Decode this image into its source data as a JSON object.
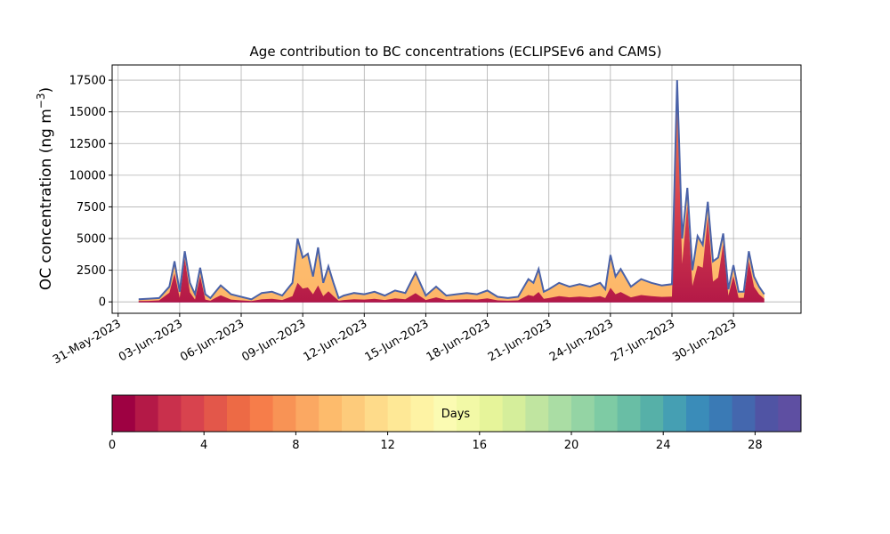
{
  "chart_data": {
    "type": "area",
    "title": "Age contribution to BC concentrations (ECLIPSEv6 and CAMS)",
    "ylabel": "OC concentration (ng m",
    "ylabel_sup": "−3",
    "ylabel_close": ")",
    "xlabel": "",
    "xlim": [
      "2023-05-30T17:00",
      "2023-07-03T07:00"
    ],
    "ylim": [
      -900,
      18700
    ],
    "grid": true,
    "x_tick_labels": [
      "31-May-2023",
      "03-Jun-2023",
      "06-Jun-2023",
      "09-Jun-2023",
      "12-Jun-2023",
      "15-Jun-2023",
      "18-Jun-2023",
      "21-Jun-2023",
      "24-Jun-2023",
      "27-Jun-2023",
      "30-Jun-2023"
    ],
    "x_ticks": [
      "2023-05-31",
      "2023-06-03",
      "2023-06-06",
      "2023-06-09",
      "2023-06-12",
      "2023-06-15",
      "2023-06-18",
      "2023-06-21",
      "2023-06-24",
      "2023-06-27",
      "2023-06-30"
    ],
    "y_ticks": [
      0,
      2500,
      5000,
      7500,
      10000,
      12500,
      15000,
      17500
    ],
    "y_tick_labels": [
      "0",
      "2500",
      "5000",
      "7500",
      "10000",
      "12500",
      "15000",
      "17500"
    ],
    "colorbar": {
      "label": "Days",
      "range": [
        0,
        30
      ],
      "tick_values": [
        0,
        4,
        8,
        12,
        16,
        20,
        24,
        28
      ],
      "tick_labels": [
        "0",
        "4",
        "8",
        "12",
        "16",
        "20",
        "24",
        "28"
      ],
      "colormap": "Spectral",
      "colors": [
        "#9e0142",
        "#b41947",
        "#c9304c",
        "#d8434e",
        "#e3574a",
        "#ed6a45",
        "#f67d4a",
        "#f89355",
        "#fba862",
        "#fdbb6c",
        "#fdcb7b",
        "#fedb8a",
        "#fee896",
        "#fef3a4",
        "#fbfbb2",
        "#f2f9a6",
        "#e6f49a",
        "#d5ee9b",
        "#c0e5a0",
        "#aadda4",
        "#94d4a4",
        "#7ecba4",
        "#69bea5",
        "#56b0a8",
        "#459fb3",
        "#3a8cb9",
        "#3a7ab5",
        "#4467ae",
        "#5054a4",
        "#5e4fa2"
      ]
    },
    "line_color": "#4a62a8",
    "x": [
      "2023-06-01T00:00",
      "2023-06-01T12:00",
      "2023-06-02T00:00",
      "2023-06-02T12:00",
      "2023-06-02T18:00",
      "2023-06-03T00:00",
      "2023-06-03T06:00",
      "2023-06-03T12:00",
      "2023-06-03T18:00",
      "2023-06-04T00:00",
      "2023-06-04T06:00",
      "2023-06-04T12:00",
      "2023-06-04T18:00",
      "2023-06-05T00:00",
      "2023-06-05T12:00",
      "2023-06-06T00:00",
      "2023-06-06T12:00",
      "2023-06-07T00:00",
      "2023-06-07T12:00",
      "2023-06-08T00:00",
      "2023-06-08T12:00",
      "2023-06-08T18:00",
      "2023-06-09T00:00",
      "2023-06-09T06:00",
      "2023-06-09T12:00",
      "2023-06-09T18:00",
      "2023-06-10T00:00",
      "2023-06-10T06:00",
      "2023-06-10T12:00",
      "2023-06-10T18:00",
      "2023-06-11T00:00",
      "2023-06-11T12:00",
      "2023-06-12T00:00",
      "2023-06-12T12:00",
      "2023-06-13T00:00",
      "2023-06-13T12:00",
      "2023-06-14T00:00",
      "2023-06-14T12:00",
      "2023-06-15T00:00",
      "2023-06-15T12:00",
      "2023-06-16T00:00",
      "2023-06-16T12:00",
      "2023-06-17T00:00",
      "2023-06-17T12:00",
      "2023-06-18T00:00",
      "2023-06-18T12:00",
      "2023-06-19T00:00",
      "2023-06-19T12:00",
      "2023-06-20T00:00",
      "2023-06-20T06:00",
      "2023-06-20T12:00",
      "2023-06-20T18:00",
      "2023-06-21T00:00",
      "2023-06-21T12:00",
      "2023-06-22T00:00",
      "2023-06-22T12:00",
      "2023-06-23T00:00",
      "2023-06-23T12:00",
      "2023-06-23T18:00",
      "2023-06-24T00:00",
      "2023-06-24T06:00",
      "2023-06-24T12:00",
      "2023-06-25T00:00",
      "2023-06-25T12:00",
      "2023-06-26T00:00",
      "2023-06-26T12:00",
      "2023-06-27T00:00",
      "2023-06-27T06:00",
      "2023-06-27T12:00",
      "2023-06-27T18:00",
      "2023-06-28T00:00",
      "2023-06-28T06:00",
      "2023-06-28T12:00",
      "2023-06-28T18:00",
      "2023-06-29T00:00",
      "2023-06-29T06:00",
      "2023-06-29T12:00",
      "2023-06-29T18:00",
      "2023-06-30T00:00",
      "2023-06-30T06:00",
      "2023-06-30T12:00",
      "2023-06-30T18:00",
      "2023-07-01T00:00",
      "2023-07-01T06:00",
      "2023-07-01T12:00"
    ],
    "total": [
      200,
      250,
      300,
      1200,
      3200,
      800,
      4000,
      1500,
      600,
      2700,
      600,
      300,
      800,
      1300,
      600,
      400,
      200,
      700,
      800,
      500,
      1500,
      5000,
      3500,
      3800,
      2000,
      4300,
      1500,
      2800,
      1500,
      300,
      500,
      700,
      600,
      800,
      500,
      900,
      700,
      2300,
      500,
      1200,
      500,
      600,
      700,
      600,
      900,
      400,
      300,
      400,
      1800,
      1500,
      2600,
      800,
      1000,
      1500,
      1200,
      1400,
      1200,
      1500,
      1000,
      3700,
      2000,
      2600,
      1200,
      1800,
      1500,
      1300,
      1400,
      17500,
      5000,
      9000,
      2500,
      5200,
      4500,
      7900,
      3200,
      3500,
      5400,
      1000,
      2900,
      800,
      800,
      4000,
      2000,
      1200,
      600
    ],
    "young_fraction": [
      0.3,
      0.3,
      0.4,
      0.6,
      0.7,
      0.4,
      0.85,
      0.5,
      0.3,
      0.75,
      0.3,
      0.3,
      0.4,
      0.4,
      0.3,
      0.3,
      0.3,
      0.3,
      0.3,
      0.3,
      0.3,
      0.3,
      0.3,
      0.3,
      0.3,
      0.3,
      0.3,
      0.3,
      0.3,
      0.3,
      0.3,
      0.3,
      0.3,
      0.3,
      0.3,
      0.3,
      0.3,
      0.3,
      0.3,
      0.3,
      0.3,
      0.3,
      0.3,
      0.3,
      0.3,
      0.3,
      0.3,
      0.3,
      0.3,
      0.3,
      0.3,
      0.3,
      0.3,
      0.3,
      0.3,
      0.3,
      0.3,
      0.3,
      0.3,
      0.3,
      0.3,
      0.3,
      0.3,
      0.3,
      0.3,
      0.3,
      0.3,
      0.9,
      0.6,
      0.85,
      0.5,
      0.55,
      0.6,
      0.85,
      0.5,
      0.55,
      0.85,
      0.5,
      0.7,
      0.4,
      0.4,
      0.8,
      0.6,
      0.5,
      0.4
    ]
  }
}
